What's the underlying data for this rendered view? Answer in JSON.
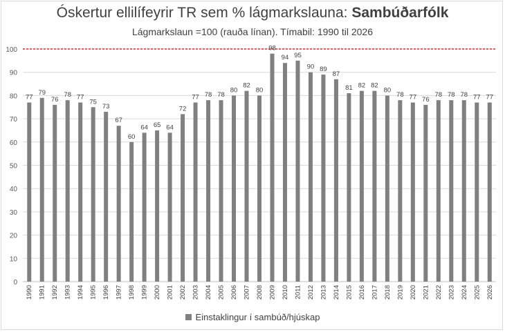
{
  "chart_data": {
    "type": "bar",
    "title_regular": "Óskertur ellilífeyrir TR sem % lágmarkslauna: ",
    "title_bold": "Sambúðarfólk",
    "subtitle": "Lágmarkslaun =100 (rauða línan). Tímabil: 1990 til 2026",
    "xlabel": "",
    "ylabel": "",
    "ylim": [
      0,
      100
    ],
    "yticks": [
      0,
      10,
      20,
      30,
      40,
      50,
      60,
      70,
      80,
      90,
      100
    ],
    "reference_line": {
      "value": 100,
      "color": "#c00000",
      "style": "dashed"
    },
    "categories": [
      "1990",
      "1991",
      "1992",
      "1993",
      "1994",
      "1995",
      "1996",
      "1997",
      "1998",
      "1999",
      "2000",
      "2001",
      "2002",
      "2003",
      "2004",
      "2005",
      "2006",
      "2007",
      "2008",
      "2009",
      "2010",
      "2011",
      "2012",
      "2013",
      "2014",
      "2015",
      "2016",
      "2017",
      "2018",
      "2019",
      "2020",
      "2021",
      "2022",
      "2023",
      "2024",
      "2025",
      "2026"
    ],
    "series": [
      {
        "name": "Einstaklingur í  sambúð/hjúskap",
        "color": "#808080",
        "values": [
          77,
          79,
          76,
          78,
          77,
          75,
          73,
          67,
          60,
          64,
          65,
          64,
          72,
          77,
          78,
          78,
          80,
          82,
          80,
          98,
          94,
          95,
          90,
          89,
          87,
          81,
          82,
          82,
          80,
          78,
          77,
          76,
          78,
          78,
          78,
          77,
          77
        ],
        "labels": [
          "77",
          "79",
          "76",
          "78",
          "77",
          "75",
          "73",
          "67",
          "60",
          "64",
          "65",
          "64",
          "72",
          "77",
          "78",
          "78",
          "80",
          "82",
          "80",
          "98",
          "94",
          "95",
          "90",
          "89",
          "87",
          "81",
          "82",
          "82",
          "80",
          "78",
          "77",
          "76",
          "78",
          "78",
          "78",
          "77",
          "77"
        ]
      }
    ],
    "grid": true,
    "legend_position": "bottom"
  }
}
